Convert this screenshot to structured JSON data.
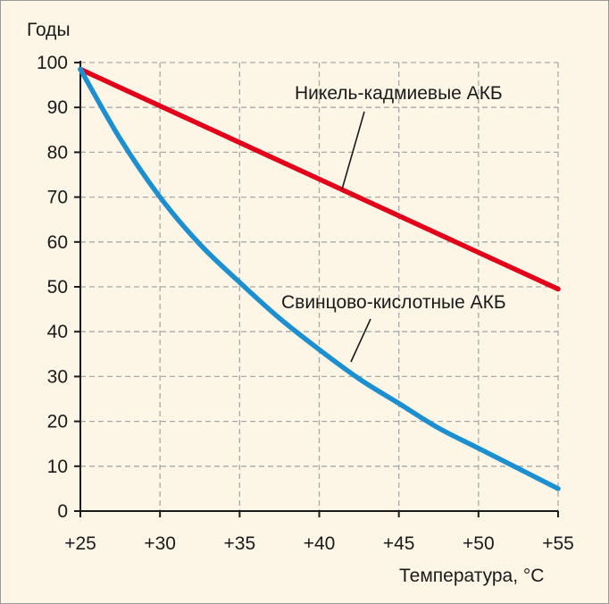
{
  "chart_data": {
    "type": "line",
    "title": "",
    "ylabel": "Годы",
    "xlabel": "Температура, °C",
    "xlim": [
      25,
      55
    ],
    "ylim": [
      0,
      100
    ],
    "x_ticks": [
      25,
      30,
      35,
      40,
      45,
      50,
      55
    ],
    "x_tick_labels": [
      "+25",
      "+30",
      "+35",
      "+40",
      "+45",
      "+50",
      "+55"
    ],
    "y_ticks": [
      0,
      10,
      20,
      30,
      40,
      50,
      60,
      70,
      80,
      90,
      100
    ],
    "y_tick_labels": [
      "0",
      "10",
      "20",
      "30",
      "40",
      "50",
      "60",
      "70",
      "80",
      "90",
      "100"
    ],
    "grid": true,
    "series": [
      {
        "name": "Никель-кадмиевые АКБ",
        "color": "#e2001a",
        "x": [
          25,
          55
        ],
        "y": [
          98.5,
          49.5
        ]
      },
      {
        "name": "Свинцово-кислотные АКБ",
        "color": "#1c8fd0",
        "x": [
          25,
          27.5,
          30,
          32.5,
          35,
          37.5,
          40,
          42.5,
          45,
          47.5,
          50,
          52.5,
          55
        ],
        "y": [
          98.5,
          83,
          70,
          59.5,
          51,
          43,
          36,
          29.5,
          24,
          18.5,
          14,
          9.5,
          5
        ]
      }
    ]
  }
}
